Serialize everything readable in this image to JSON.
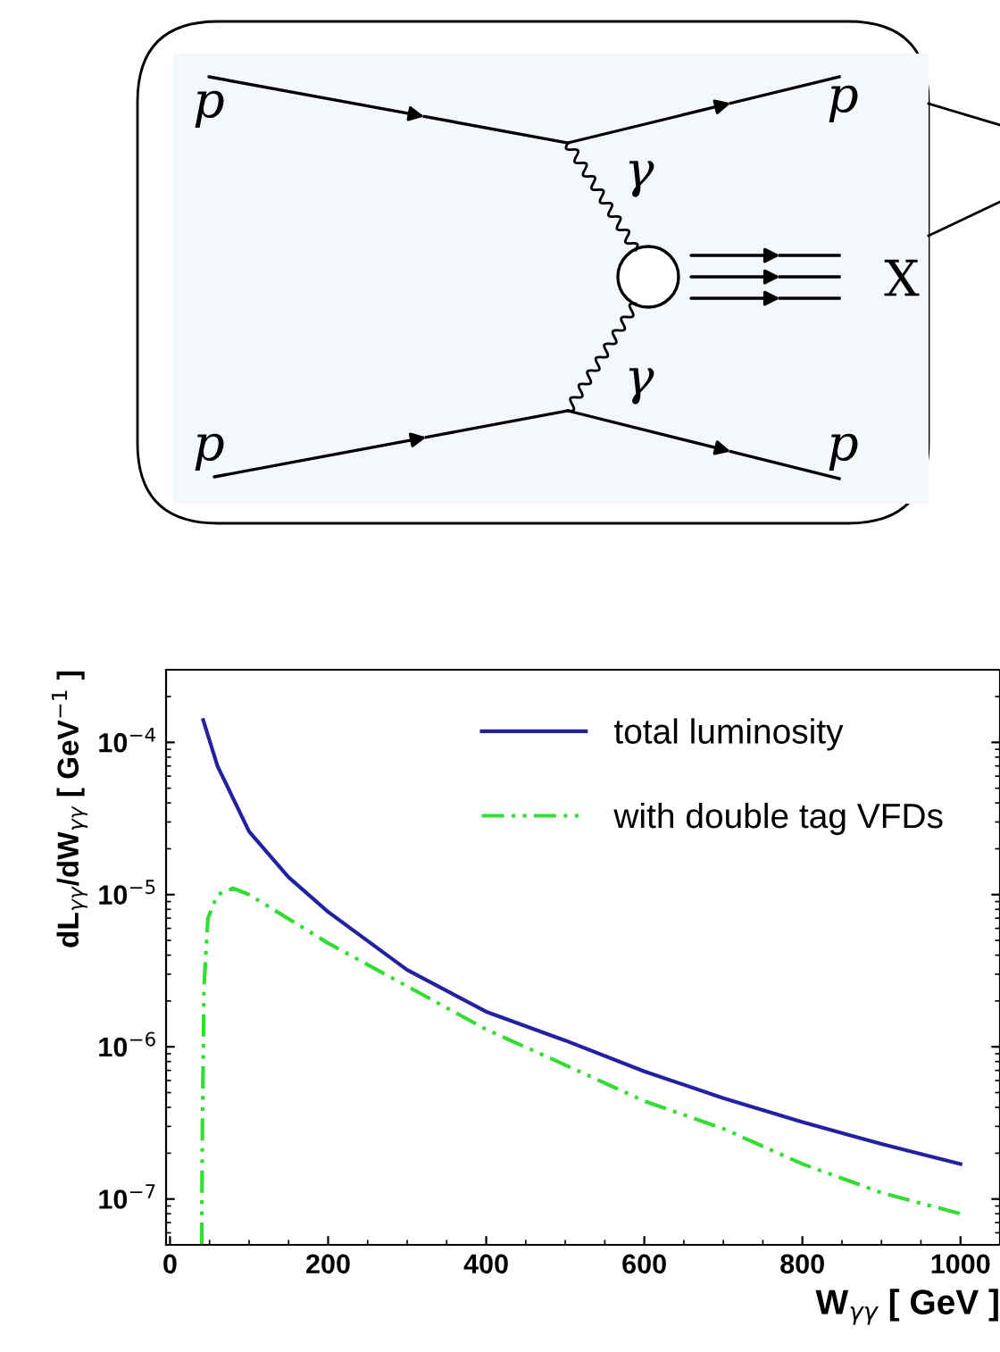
{
  "chart_data": [
    {
      "type": "other",
      "annotations": [
        "p",
        "p",
        "p",
        "p",
        "γ",
        "γ",
        "X"
      ]
    },
    {
      "type": "line",
      "xlabel": "W$_{γγ}$ [ GeV ]",
      "ylabel": "dL$_{γγ}$/dW$_{γγ}$ [ GeV$^{−1}$ ]",
      "log": "y",
      "legend": "top right",
      "grid": false,
      "xlim": [
        -5,
        1050
      ],
      "xticks": [
        0,
        200,
        400,
        600,
        800,
        1000
      ],
      "ylim": [
        5e-08,
        0.0003
      ],
      "yticks": [
        {
          "value": 1e-07,
          "label": "10$^{−7}$"
        },
        {
          "value": 1e-06,
          "label": "10$^{−6}$"
        },
        {
          "value": 1e-05,
          "label": "10$^{−5}$"
        },
        {
          "value": 0.0001,
          "label": "10$^{−4}$"
        }
      ],
      "series": [
        {
          "name": "total luminosity",
          "color": "#2222a0",
          "line_style": "solid",
          "x": [
            42,
            60,
            100,
            150,
            200,
            300,
            400,
            500,
            600,
            700,
            800,
            900,
            1000
          ],
          "values": [
            0.00014,
            7e-05,
            2.6e-05,
            1.3e-05,
            7.7e-06,
            3.2e-06,
            1.7e-06,
            1.1e-06,
            6.9e-07,
            4.6e-07,
            3.2e-07,
            2.3e-07,
            1.7e-07
          ]
        },
        {
          "name": "with double tag VFDs",
          "color": "#33dd33",
          "line_style": "dashdot",
          "x": [
            40,
            41,
            43,
            48,
            60,
            80,
            100,
            200,
            300,
            400,
            500,
            600,
            700,
            800,
            900,
            1000
          ],
          "values": [
            5e-08,
            3e-07,
            2.5e-06,
            7e-06,
            1e-05,
            1.1e-05,
            1e-05,
            4.8e-06,
            2.5e-06,
            1.3e-06,
            7.6e-07,
            4.4e-07,
            2.9e-07,
            1.7e-07,
            1.1e-07,
            8e-08
          ]
        }
      ]
    }
  ]
}
